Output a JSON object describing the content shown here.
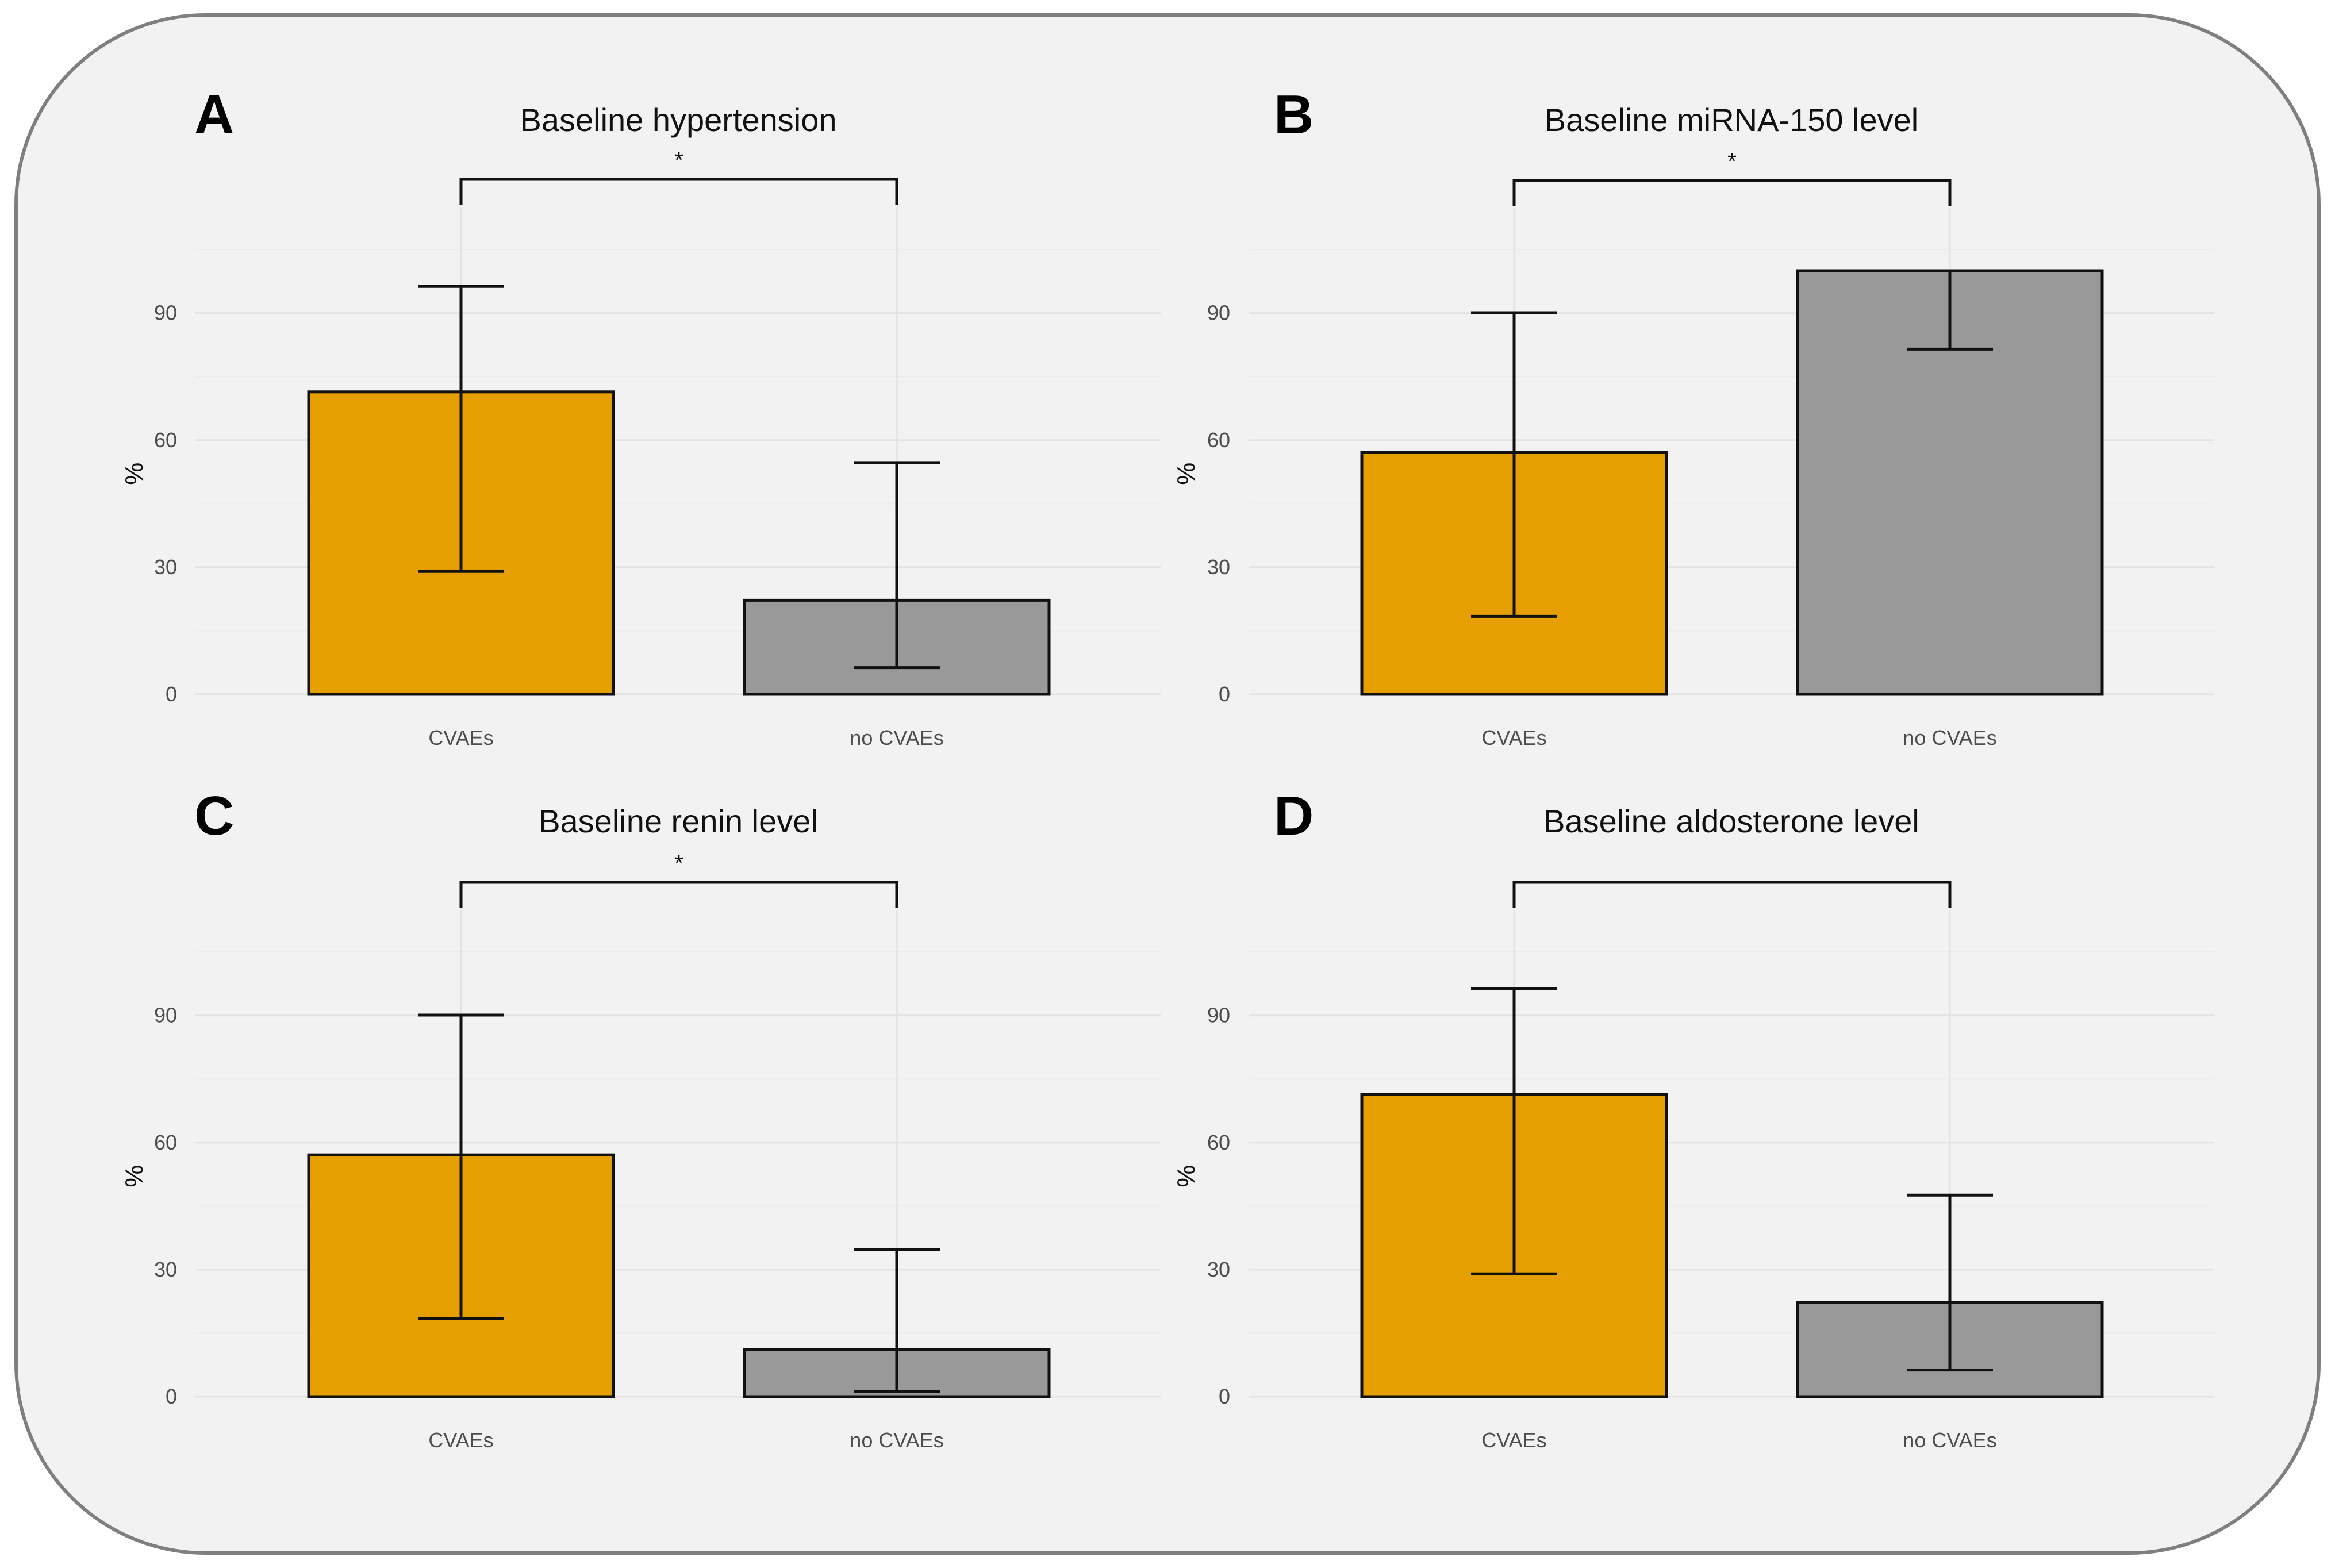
{
  "colors": {
    "background": "#f2f2f2",
    "frame": "#7f7f7f",
    "CVAEs": "#e69f00",
    "no CVAEs": "#999999"
  },
  "chart_data": [
    {
      "panel": "A",
      "type": "bar",
      "title": "Baseline hypertension",
      "ylabel": "%",
      "xlabel": "",
      "ylim": [
        0,
        115
      ],
      "yticks": [
        0,
        30,
        60,
        90
      ],
      "grid": true,
      "categories": [
        "CVAEs",
        "no CVAEs"
      ],
      "values": [
        71.4,
        22.2
      ],
      "error_low": [
        29.0,
        6.3
      ],
      "error_high": [
        96.3,
        54.7
      ],
      "significance": "*"
    },
    {
      "panel": "B",
      "type": "bar",
      "title": "Baseline miRNA-150 level",
      "ylabel": "%",
      "xlabel": "",
      "ylim": [
        0,
        115
      ],
      "yticks": [
        0,
        30,
        60,
        90
      ],
      "grid": true,
      "categories": [
        "CVAEs",
        "no CVAEs"
      ],
      "values": [
        57.1,
        100.0
      ],
      "error_low": [
        18.4,
        81.5
      ],
      "error_high": [
        90.1,
        100.0
      ],
      "significance": "*"
    },
    {
      "panel": "C",
      "type": "bar",
      "title": "Baseline renin level",
      "ylabel": "%",
      "xlabel": "",
      "ylim": [
        0,
        115
      ],
      "yticks": [
        0,
        30,
        60,
        90
      ],
      "grid": true,
      "categories": [
        "CVAEs",
        "no CVAEs"
      ],
      "values": [
        57.1,
        11.1
      ],
      "error_low": [
        18.4,
        1.2
      ],
      "error_high": [
        90.1,
        34.7
      ],
      "significance": "*"
    },
    {
      "panel": "D",
      "type": "bar",
      "title": "Baseline aldosterone level",
      "ylabel": "%",
      "xlabel": "",
      "ylim": [
        0,
        115
      ],
      "yticks": [
        0,
        30,
        60,
        90
      ],
      "grid": true,
      "categories": [
        "CVAEs",
        "no CVAEs"
      ],
      "values": [
        71.4,
        22.2
      ],
      "error_low": [
        29.0,
        6.3
      ],
      "error_high": [
        96.3,
        47.6
      ],
      "significance": ""
    }
  ]
}
